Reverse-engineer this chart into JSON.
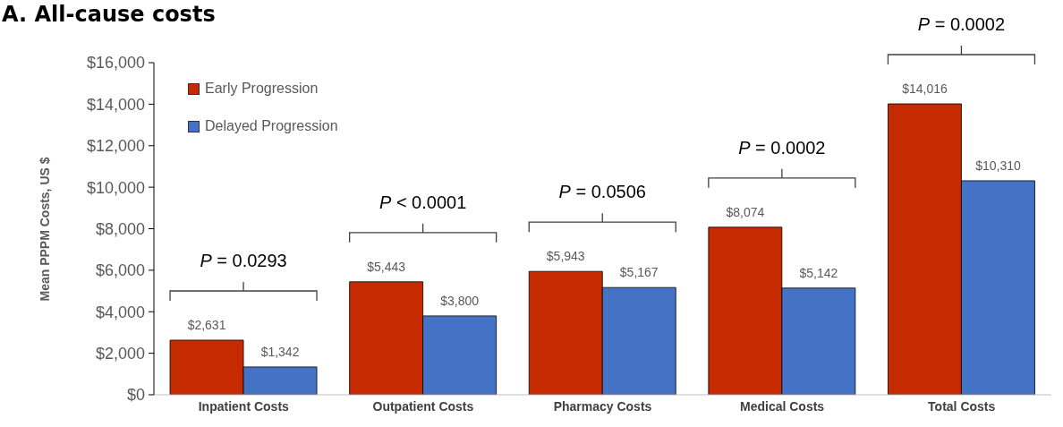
{
  "chart_data": {
    "type": "bar",
    "title": "A. All-cause costs",
    "ylabel": "Mean PPPM Costs, US $",
    "categories": [
      "Inpatient Costs",
      "Outpatient Costs",
      "Pharmacy Costs",
      "Medical Costs",
      "Total Costs"
    ],
    "series": [
      {
        "name": "Early Progression",
        "color": "#c52a00",
        "values": [
          2631,
          5443,
          5943,
          8074,
          14016
        ],
        "value_labels": [
          "$2,631",
          "$5,443",
          "$5,943",
          "$8,074",
          "$14,016"
        ]
      },
      {
        "name": "Delayed Progression",
        "color": "#4472c4",
        "values": [
          1342,
          3800,
          5167,
          5142,
          10310
        ],
        "value_labels": [
          "$1,342",
          "$3,800",
          "$5,167",
          "$5,142",
          "$10,310"
        ]
      }
    ],
    "ylim": [
      0,
      16000
    ],
    "yticks": [
      {
        "value": 0,
        "label": "$0"
      },
      {
        "value": 2000,
        "label": "$2,000"
      },
      {
        "value": 4000,
        "label": "$4,000"
      },
      {
        "value": 6000,
        "label": "$6,000"
      },
      {
        "value": 8000,
        "label": "$8,000"
      },
      {
        "value": 10000,
        "label": "$10,000"
      },
      {
        "value": 12000,
        "label": "$12,000"
      },
      {
        "value": 14000,
        "label": "$14,000"
      },
      {
        "value": 16000,
        "label": "$16,000"
      }
    ],
    "annotations": [
      "P = 0.0293",
      "P < 0.0001",
      "P = 0.0506",
      "P = 0.0002",
      "P = 0.0002"
    ],
    "grid": false,
    "legend": "top left"
  }
}
